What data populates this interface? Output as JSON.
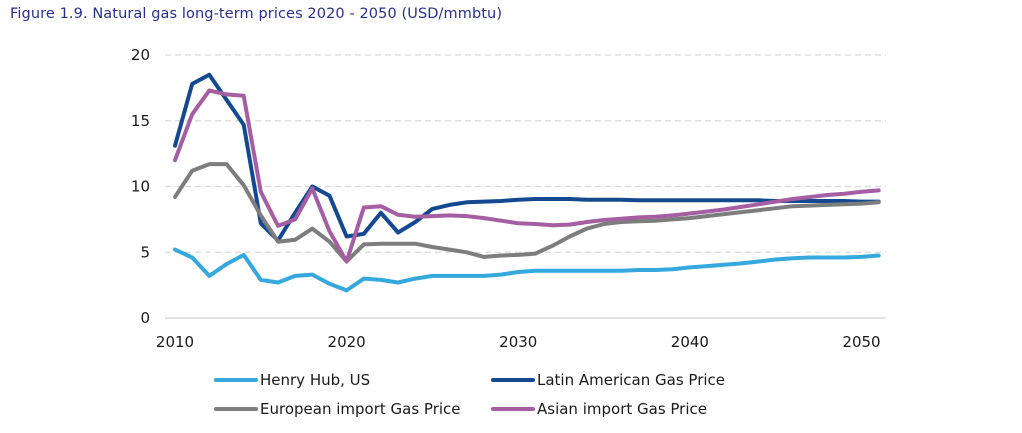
{
  "chart_data": {
    "type": "line",
    "title": "Figure 1.9. Natural gas long-term prices 2020 - 2050 (USD/mmbtu)",
    "xlabel": "",
    "ylabel": "",
    "xlim": [
      2010,
      2051
    ],
    "ylim": [
      0,
      20
    ],
    "x_ticks": [
      2010,
      2020,
      2030,
      2040,
      2050
    ],
    "y_ticks": [
      0,
      5,
      10,
      15,
      20
    ],
    "grid": "horizontal dashed",
    "legend_position": "bottom",
    "x": [
      2010,
      2011,
      2012,
      2013,
      2014,
      2015,
      2016,
      2017,
      2018,
      2019,
      2020,
      2021,
      2022,
      2023,
      2024,
      2025,
      2026,
      2027,
      2028,
      2029,
      2030,
      2031,
      2032,
      2033,
      2034,
      2035,
      2036,
      2037,
      2038,
      2039,
      2040,
      2041,
      2042,
      2043,
      2044,
      2045,
      2046,
      2047,
      2048,
      2049,
      2050,
      2051
    ],
    "series": [
      {
        "name": "Henry Hub, US",
        "color": "#35a8dd",
        "values": [
          5.2,
          4.6,
          3.2,
          4.1,
          4.8,
          2.9,
          2.7,
          3.2,
          3.3,
          2.6,
          2.1,
          3.0,
          2.9,
          2.7,
          3.0,
          3.2,
          3.2,
          3.2,
          3.2,
          3.3,
          3.5,
          3.6,
          3.6,
          3.6,
          3.6,
          3.6,
          3.6,
          3.65,
          3.65,
          3.7,
          3.85,
          3.95,
          4.05,
          4.15,
          4.3,
          4.45,
          4.55,
          4.6,
          4.6,
          4.6,
          4.65,
          4.75
        ]
      },
      {
        "name": "Latin American Gas Price",
        "color": "#15498f",
        "values": [
          13.1,
          17.8,
          18.5,
          16.6,
          14.7,
          7.2,
          5.9,
          8.0,
          10.0,
          9.3,
          6.2,
          6.4,
          8.0,
          6.5,
          7.3,
          8.3,
          8.6,
          8.8,
          8.85,
          8.9,
          9.0,
          9.05,
          9.05,
          9.05,
          9.0,
          9.0,
          9.0,
          8.95,
          8.95,
          8.95,
          8.95,
          8.95,
          8.95,
          8.95,
          8.95,
          8.9,
          8.9,
          8.9,
          8.9,
          8.9,
          8.85,
          8.85
        ]
      },
      {
        "name": "European import Gas Price",
        "color": "#7d7d7d",
        "values": [
          9.2,
          11.2,
          11.7,
          11.7,
          10.1,
          7.8,
          5.8,
          5.95,
          6.8,
          5.8,
          4.3,
          5.6,
          5.65,
          5.65,
          5.65,
          5.4,
          5.2,
          5.0,
          4.65,
          4.75,
          4.8,
          4.9,
          5.5,
          6.2,
          6.8,
          7.15,
          7.3,
          7.35,
          7.4,
          7.5,
          7.6,
          7.75,
          7.9,
          8.05,
          8.2,
          8.35,
          8.5,
          8.55,
          8.6,
          8.65,
          8.7,
          8.8
        ]
      },
      {
        "name": "Asian import Gas Price",
        "color": "#a65ea2",
        "values": [
          12.0,
          15.5,
          17.3,
          17.0,
          16.9,
          9.6,
          7.0,
          7.5,
          9.85,
          6.6,
          4.3,
          8.4,
          8.5,
          7.85,
          7.7,
          7.75,
          7.8,
          7.75,
          7.6,
          7.4,
          7.2,
          7.15,
          7.05,
          7.1,
          7.3,
          7.45,
          7.55,
          7.65,
          7.7,
          7.8,
          7.95,
          8.1,
          8.25,
          8.45,
          8.65,
          8.85,
          9.05,
          9.2,
          9.35,
          9.45,
          9.6,
          9.7
        ]
      }
    ]
  }
}
